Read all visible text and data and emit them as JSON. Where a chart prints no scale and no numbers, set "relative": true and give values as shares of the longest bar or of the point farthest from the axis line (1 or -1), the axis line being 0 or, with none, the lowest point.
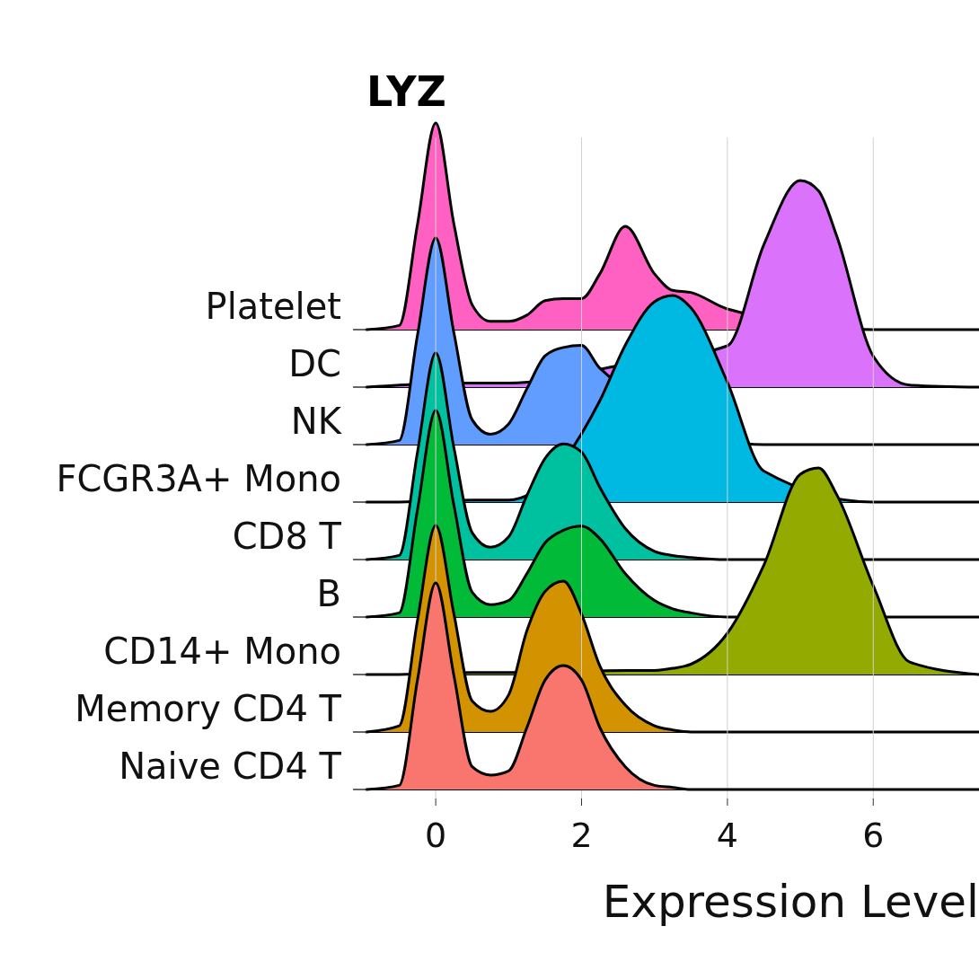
{
  "chart_data": [
    {
      "type": "area",
      "title": "LYZ",
      "ylabel": "Platelet",
      "relative": true,
      "tick_labels": false,
      "xlim": [
        -0.95,
        7.45
      ],
      "x": [
        -0.95,
        -0.5,
        -0.25,
        0,
        0.25,
        0.5,
        0.75,
        1,
        1.25,
        1.5,
        1.75,
        2,
        2.25,
        2.6,
        3,
        3.25,
        3.5,
        4,
        4.5,
        5,
        5.25,
        5.5,
        6,
        6.5,
        7.45
      ],
      "series": [
        {
          "color": "#ff61c3",
          "values": [
            0,
            0.02,
            0.51,
            1,
            0.51,
            0.12,
            0.04,
            0.04,
            0.07,
            0.14,
            0.15,
            0.15,
            0.27,
            0.5,
            0.27,
            0.19,
            0.18,
            0.1,
            null,
            null,
            null,
            null,
            0,
            0,
            0
          ]
        }
      ]
    },
    {
      "type": "area",
      "ylabel": "DC",
      "relative": true,
      "tick_labels": false,
      "xlim": [
        -0.95,
        7.45
      ],
      "x": [
        -0.95,
        -0.5,
        -0.25,
        0,
        0.25,
        0.5,
        0.75,
        1,
        1.25,
        1.5,
        1.75,
        2,
        2.25,
        2.6,
        3,
        3.25,
        3.5,
        4,
        4.5,
        5,
        5.25,
        5.5,
        6,
        6.5,
        7.45
      ],
      "series": [
        {
          "color": "#db72fb",
          "values": [
            0,
            0.01,
            null,
            null,
            null,
            0.02,
            0.02,
            0.02,
            null,
            null,
            null,
            null,
            null,
            0.11,
            null,
            null,
            null,
            0.2,
            0.69,
            1,
            0.95,
            0.73,
            0.15,
            0.01,
            0
          ]
        }
      ]
    },
    {
      "type": "area",
      "ylabel": "NK",
      "relative": true,
      "tick_labels": false,
      "xlim": [
        -0.95,
        7.45
      ],
      "x": [
        -0.95,
        -0.5,
        -0.25,
        0,
        0.25,
        0.5,
        0.75,
        1,
        1.25,
        1.5,
        1.75,
        2,
        2.25,
        2.6,
        3,
        3.25,
        3.5,
        4,
        4.5,
        5,
        5.25,
        5.5,
        6,
        6.5,
        7.45
      ],
      "series": [
        {
          "color": "#619cff",
          "values": [
            0,
            0.02,
            0.53,
            1,
            0.54,
            0.12,
            0.05,
            0.1,
            0.27,
            0.43,
            0.47,
            0.48,
            0.37,
            null,
            null,
            null,
            null,
            null,
            0,
            0,
            0,
            0,
            0,
            0,
            0
          ]
        }
      ]
    },
    {
      "type": "area",
      "ylabel": "FCGR3A+ Mono",
      "relative": true,
      "tick_labels": false,
      "xlim": [
        -0.95,
        7.45
      ],
      "x": [
        -0.95,
        -0.5,
        -0.25,
        0,
        0.25,
        0.5,
        0.75,
        1,
        1.25,
        1.5,
        1.75,
        2,
        2.25,
        2.6,
        3,
        3.25,
        3.5,
        4,
        4.5,
        5,
        5.25,
        5.5,
        6,
        6.5,
        7.45
      ],
      "series": [
        {
          "color": "#00b9e3",
          "values": [
            0,
            0,
            null,
            null,
            null,
            0.01,
            0.01,
            0.01,
            null,
            null,
            null,
            null,
            0.49,
            0.76,
            0.97,
            1,
            0.94,
            0.58,
            0.15,
            null,
            null,
            null,
            0,
            0,
            0
          ]
        }
      ]
    },
    {
      "type": "area",
      "ylabel": "CD8 T",
      "relative": true,
      "tick_labels": false,
      "xlim": [
        -0.95,
        7.45
      ],
      "x": [
        -0.95,
        -0.5,
        -0.25,
        0,
        0.25,
        0.5,
        0.75,
        1,
        1.25,
        1.5,
        1.75,
        2,
        2.25,
        2.6,
        3,
        3.25,
        3.5,
        4,
        4.5,
        5,
        5.25,
        5.5,
        6,
        6.5,
        7.45
      ],
      "series": [
        {
          "color": "#00c19f",
          "values": [
            0,
            0.02,
            0.52,
            1,
            0.54,
            0.13,
            0.06,
            0.11,
            0.31,
            0.49,
            0.56,
            0.52,
            0.35,
            0.15,
            0.04,
            0.02,
            0.01,
            0,
            0,
            null,
            null,
            null,
            0,
            0,
            0
          ]
        }
      ]
    },
    {
      "type": "area",
      "ylabel": "B",
      "relative": true,
      "tick_labels": false,
      "xlim": [
        -0.95,
        7.45
      ],
      "x": [
        -0.95,
        -0.5,
        -0.25,
        0,
        0.25,
        0.5,
        0.75,
        1,
        1.25,
        1.5,
        1.75,
        2,
        2.25,
        2.6,
        3,
        3.25,
        3.5,
        4,
        4.5,
        5,
        5.25,
        5.5,
        6,
        6.5,
        7.45
      ],
      "series": [
        {
          "color": "#00ba38",
          "values": [
            0,
            0.02,
            0.52,
            1,
            0.54,
            0.12,
            0.06,
            0.08,
            0.21,
            0.36,
            0.42,
            0.44,
            0.38,
            0.21,
            0.08,
            0.04,
            0.02,
            0,
            null,
            null,
            null,
            null,
            null,
            0,
            0
          ]
        }
      ]
    },
    {
      "type": "area",
      "ylabel": "CD14+ Mono",
      "relative": true,
      "tick_labels": false,
      "xlim": [
        -0.95,
        7.45
      ],
      "x": [
        -0.95,
        -0.5,
        -0.25,
        0,
        0.25,
        0.5,
        0.75,
        1,
        1.25,
        1.5,
        1.75,
        2,
        2.25,
        2.6,
        3,
        3.25,
        3.5,
        4,
        4.5,
        5,
        5.25,
        5.5,
        6,
        6.5,
        7.45
      ],
      "series": [
        {
          "color": "#93aa00",
          "values": [
            0,
            0,
            null,
            null,
            null,
            0.01,
            0.01,
            0.01,
            null,
            null,
            null,
            null,
            null,
            0.02,
            0.02,
            0.03,
            0.05,
            0.2,
            0.53,
            0.97,
            1,
            0.87,
            0.43,
            0.06,
            0
          ]
        }
      ]
    },
    {
      "type": "area",
      "ylabel": "Memory CD4 T",
      "relative": true,
      "tick_labels": false,
      "xlim": [
        -0.95,
        7.45
      ],
      "x": [
        -0.95,
        -0.5,
        -0.25,
        0,
        0.25,
        0.5,
        0.75,
        1,
        1.25,
        1.5,
        1.75,
        2,
        2.25,
        2.6,
        3,
        3.25,
        3.5,
        4,
        4.5,
        5,
        5.25,
        5.5,
        6,
        6.5,
        7.45
      ],
      "series": [
        {
          "color": "#d39200",
          "values": [
            0,
            0.03,
            0.54,
            1,
            0.57,
            0.15,
            0.1,
            0.18,
            0.49,
            0.68,
            0.73,
            0.57,
            0.32,
            0.13,
            0.03,
            0.01,
            0,
            0,
            0,
            0,
            0,
            0,
            0,
            0,
            0
          ]
        }
      ]
    },
    {
      "type": "area",
      "ylabel": "Naive CD4 T",
      "xlabel": "Expression Level",
      "relative": true,
      "grid": "x",
      "tick_labels": "x",
      "xlim": [
        -0.95,
        7.45
      ],
      "xticks": [
        0,
        2,
        4,
        6
      ],
      "x": [
        -0.95,
        -0.5,
        -0.25,
        0,
        0.25,
        0.5,
        0.75,
        1,
        1.25,
        1.5,
        1.75,
        2,
        2.25,
        2.6,
        3,
        3.25,
        3.5,
        4,
        4.5,
        5,
        5.25,
        5.5,
        6,
        6.5,
        7.45
      ],
      "series": [
        {
          "color": "#f8766d",
          "values": [
            0,
            0.02,
            0.53,
            1,
            0.55,
            0.11,
            0.07,
            0.09,
            0.3,
            0.53,
            0.6,
            0.53,
            0.3,
            0.11,
            0.02,
            0.01,
            0,
            0,
            0,
            0,
            0,
            0,
            0,
            0,
            0
          ]
        }
      ]
    }
  ]
}
